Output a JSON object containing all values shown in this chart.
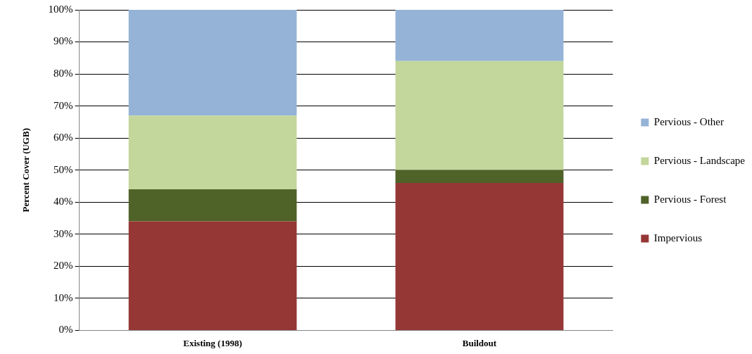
{
  "chart_data": {
    "type": "bar",
    "stacked": true,
    "ylabel": "Percent Cover (UGB)",
    "categories": [
      "Existing (1998)",
      "Buildout"
    ],
    "series": [
      {
        "name": "Impervious",
        "color": "#953735",
        "values": [
          34,
          46
        ]
      },
      {
        "name": "Pervious - Forest",
        "color": "#4f6228",
        "values": [
          10,
          4
        ]
      },
      {
        "name": "Pervious - Landscape",
        "color": "#c3d69b",
        "values": [
          23,
          34
        ]
      },
      {
        "name": "Pervious - Other",
        "color": "#95b3d7",
        "values": [
          33,
          16
        ]
      }
    ],
    "ylim": [
      0,
      100
    ],
    "yticks": [
      {
        "value": 0,
        "label": "0%"
      },
      {
        "value": 10,
        "label": "10%"
      },
      {
        "value": 20,
        "label": "20%"
      },
      {
        "value": 30,
        "label": "30%"
      },
      {
        "value": 40,
        "label": "40%"
      },
      {
        "value": 50,
        "label": "50%"
      },
      {
        "value": 60,
        "label": "60%"
      },
      {
        "value": 70,
        "label": "70%"
      },
      {
        "value": 80,
        "label": "80%"
      },
      {
        "value": 90,
        "label": "90%"
      },
      {
        "value": 100,
        "label": "100%"
      }
    ],
    "grid": "y",
    "legend": "right"
  }
}
